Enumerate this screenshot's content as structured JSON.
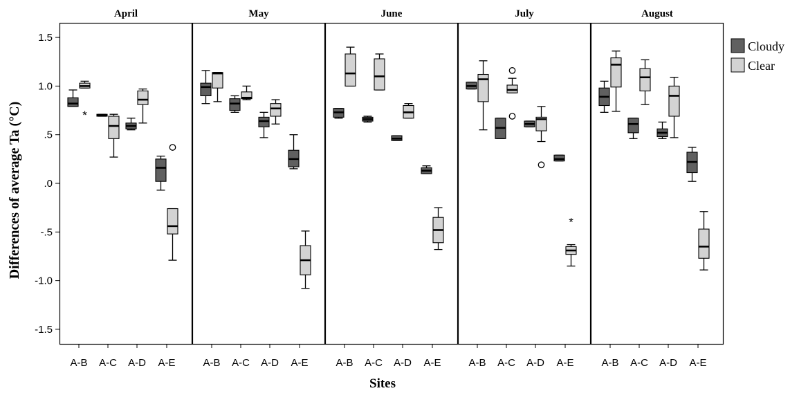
{
  "chart_data": {
    "type": "boxplot",
    "ylabel": "Differences of average Ta (°C)",
    "xlabel": "Sites",
    "ylim": [
      -1.65,
      1.65
    ],
    "yticks": [
      {
        "v": 1.5,
        "label": "1.5"
      },
      {
        "v": 1.0,
        "label": "1.0"
      },
      {
        "v": 0.5,
        "label": ".5"
      },
      {
        "v": 0.0,
        "label": ".0"
      },
      {
        "v": -0.5,
        "label": "-.5"
      },
      {
        "v": -1.0,
        "label": "-1.0"
      },
      {
        "v": -1.5,
        "label": "-1.5"
      }
    ],
    "categories": [
      "A-B",
      "A-C",
      "A-D",
      "A-E"
    ],
    "series": [
      {
        "name": "Cloudy",
        "color": "#606060"
      },
      {
        "name": "Clear",
        "color": "#d3d3d3"
      }
    ],
    "legend_position": "top-right",
    "panels": [
      {
        "title": "April",
        "groups": [
          {
            "category": "A-B",
            "Cloudy": {
              "min": 0.79,
              "q1": 0.79,
              "median": 0.82,
              "q3": 0.88,
              "max": 0.96,
              "outliers": []
            },
            "Clear": {
              "min": 0.98,
              "q1": 0.98,
              "median": 1.0,
              "q3": 1.03,
              "max": 1.05,
              "outliers": [
                {
                  "v": 0.72,
                  "m": "star"
                }
              ]
            }
          },
          {
            "category": "A-C",
            "Cloudy": {
              "min": 0.69,
              "q1": 0.69,
              "median": 0.7,
              "q3": 0.71,
              "max": 0.71,
              "outliers": []
            },
            "Clear": {
              "min": 0.27,
              "q1": 0.46,
              "median": 0.59,
              "q3": 0.69,
              "max": 0.71,
              "outliers": []
            }
          },
          {
            "category": "A-D",
            "Cloudy": {
              "min": 0.55,
              "q1": 0.56,
              "median": 0.59,
              "q3": 0.62,
              "max": 0.67,
              "outliers": []
            },
            "Clear": {
              "min": 0.62,
              "q1": 0.81,
              "median": 0.86,
              "q3": 0.95,
              "max": 0.97,
              "outliers": []
            }
          },
          {
            "category": "A-E",
            "Cloudy": {
              "min": -0.07,
              "q1": 0.02,
              "median": 0.16,
              "q3": 0.25,
              "max": 0.28,
              "outliers": []
            },
            "Clear": {
              "min": -0.79,
              "q1": -0.52,
              "median": -0.44,
              "q3": -0.26,
              "max": -0.26,
              "outliers": [
                {
                  "v": 0.37,
                  "m": "circle"
                }
              ]
            }
          }
        ]
      },
      {
        "title": "May",
        "groups": [
          {
            "category": "A-B",
            "Cloudy": {
              "min": 0.82,
              "q1": 0.9,
              "median": 0.99,
              "q3": 1.03,
              "max": 1.16,
              "outliers": []
            },
            "Clear": {
              "min": 0.84,
              "q1": 0.98,
              "median": 1.13,
              "q3": 1.14,
              "max": 1.14,
              "outliers": []
            }
          },
          {
            "category": "A-C",
            "Cloudy": {
              "min": 0.73,
              "q1": 0.75,
              "median": 0.82,
              "q3": 0.87,
              "max": 0.9,
              "outliers": []
            },
            "Clear": {
              "min": 0.86,
              "q1": 0.87,
              "median": 0.88,
              "q3": 0.94,
              "max": 1.0,
              "outliers": []
            }
          },
          {
            "category": "A-D",
            "Cloudy": {
              "min": 0.47,
              "q1": 0.58,
              "median": 0.64,
              "q3": 0.68,
              "max": 0.73,
              "outliers": []
            },
            "Clear": {
              "min": 0.61,
              "q1": 0.69,
              "median": 0.77,
              "q3": 0.82,
              "max": 0.86,
              "outliers": []
            }
          },
          {
            "category": "A-E",
            "Cloudy": {
              "min": 0.15,
              "q1": 0.17,
              "median": 0.25,
              "q3": 0.34,
              "max": 0.5,
              "outliers": []
            },
            "Clear": {
              "min": -1.08,
              "q1": -0.94,
              "median": -0.79,
              "q3": -0.64,
              "max": -0.49,
              "outliers": []
            }
          }
        ]
      },
      {
        "title": "June",
        "groups": [
          {
            "category": "A-B",
            "Cloudy": {
              "min": 0.67,
              "q1": 0.68,
              "median": 0.73,
              "q3": 0.77,
              "max": 0.77,
              "outliers": []
            },
            "Clear": {
              "min": 1.0,
              "q1": 1.0,
              "median": 1.13,
              "q3": 1.33,
              "max": 1.4,
              "outliers": []
            }
          },
          {
            "category": "A-C",
            "Cloudy": {
              "min": 0.63,
              "q1": 0.64,
              "median": 0.66,
              "q3": 0.68,
              "max": 0.69,
              "outliers": []
            },
            "Clear": {
              "min": 0.96,
              "q1": 0.96,
              "median": 1.1,
              "q3": 1.28,
              "max": 1.33,
              "outliers": []
            }
          },
          {
            "category": "A-D",
            "Cloudy": {
              "min": 0.44,
              "q1": 0.44,
              "median": 0.46,
              "q3": 0.49,
              "max": 0.49,
              "outliers": []
            },
            "Clear": {
              "min": 0.67,
              "q1": 0.67,
              "median": 0.73,
              "q3": 0.8,
              "max": 0.82,
              "outliers": []
            }
          },
          {
            "category": "A-E",
            "Cloudy": {
              "min": 0.1,
              "q1": 0.1,
              "median": 0.13,
              "q3": 0.16,
              "max": 0.18,
              "outliers": []
            },
            "Clear": {
              "min": -0.68,
              "q1": -0.61,
              "median": -0.48,
              "q3": -0.35,
              "max": -0.25,
              "outliers": []
            }
          }
        ]
      },
      {
        "title": "July",
        "groups": [
          {
            "category": "A-B",
            "Cloudy": {
              "min": 0.97,
              "q1": 0.97,
              "median": 1.0,
              "q3": 1.04,
              "max": 1.04,
              "outliers": []
            },
            "Clear": {
              "min": 0.55,
              "q1": 0.84,
              "median": 1.07,
              "q3": 1.12,
              "max": 1.26,
              "outliers": []
            }
          },
          {
            "category": "A-C",
            "Cloudy": {
              "min": 0.46,
              "q1": 0.46,
              "median": 0.57,
              "q3": 0.67,
              "max": 0.67,
              "outliers": []
            },
            "Clear": {
              "min": 0.93,
              "q1": 0.93,
              "median": 0.96,
              "q3": 1.01,
              "max": 1.08,
              "outliers": [
                {
                  "v": 1.16,
                  "m": "circle"
                },
                {
                  "v": 0.69,
                  "m": "circle"
                }
              ]
            }
          },
          {
            "category": "A-D",
            "Cloudy": {
              "min": 0.58,
              "q1": 0.58,
              "median": 0.61,
              "q3": 0.64,
              "max": 0.64,
              "outliers": []
            },
            "Clear": {
              "min": 0.43,
              "q1": 0.54,
              "median": 0.66,
              "q3": 0.68,
              "max": 0.79,
              "outliers": [
                {
                  "v": 0.19,
                  "m": "circle"
                }
              ]
            }
          },
          {
            "category": "A-E",
            "Cloudy": {
              "min": 0.23,
              "q1": 0.23,
              "median": 0.25,
              "q3": 0.29,
              "max": 0.29,
              "outliers": []
            },
            "Clear": {
              "min": -0.85,
              "q1": -0.73,
              "median": -0.69,
              "q3": -0.65,
              "max": -0.63,
              "outliers": [
                {
                  "v": -0.38,
                  "m": "star"
                }
              ]
            }
          }
        ]
      },
      {
        "title": "August",
        "groups": [
          {
            "category": "A-B",
            "Cloudy": {
              "min": 0.73,
              "q1": 0.8,
              "median": 0.89,
              "q3": 0.98,
              "max": 1.05,
              "outliers": []
            },
            "Clear": {
              "min": 0.74,
              "q1": 0.99,
              "median": 1.22,
              "q3": 1.29,
              "max": 1.36,
              "outliers": []
            }
          },
          {
            "category": "A-C",
            "Cloudy": {
              "min": 0.46,
              "q1": 0.52,
              "median": 0.61,
              "q3": 0.67,
              "max": 0.67,
              "outliers": []
            },
            "Clear": {
              "min": 0.81,
              "q1": 0.95,
              "median": 1.09,
              "q3": 1.18,
              "max": 1.27,
              "outliers": []
            }
          },
          {
            "category": "A-D",
            "Cloudy": {
              "min": 0.46,
              "q1": 0.48,
              "median": 0.52,
              "q3": 0.56,
              "max": 0.63,
              "outliers": []
            },
            "Clear": {
              "min": 0.47,
              "q1": 0.69,
              "median": 0.9,
              "q3": 1.0,
              "max": 1.09,
              "outliers": []
            }
          },
          {
            "category": "A-E",
            "Cloudy": {
              "min": 0.02,
              "q1": 0.11,
              "median": 0.22,
              "q3": 0.32,
              "max": 0.37,
              "outliers": []
            },
            "Clear": {
              "min": -0.89,
              "q1": -0.77,
              "median": -0.65,
              "q3": -0.47,
              "max": -0.29,
              "outliers": []
            }
          }
        ]
      }
    ]
  }
}
